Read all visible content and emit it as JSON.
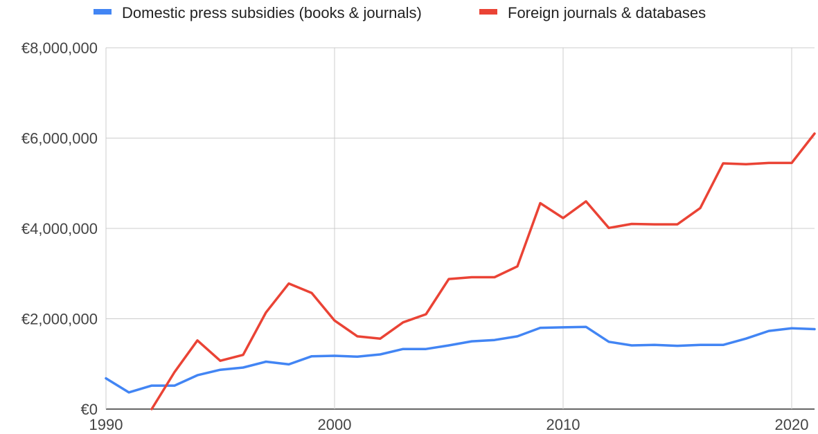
{
  "chart_data": {
    "type": "line",
    "title": "",
    "xlabel": "",
    "ylabel": "",
    "xlim": [
      1990,
      2021
    ],
    "ylim": [
      0,
      8000000
    ],
    "x_ticks": [
      {
        "value": 1990,
        "label": "1990"
      },
      {
        "value": 2000,
        "label": "2000"
      },
      {
        "value": 2010,
        "label": "2010"
      },
      {
        "value": 2020,
        "label": "2020"
      }
    ],
    "y_ticks": [
      {
        "value": 0,
        "label": "€0"
      },
      {
        "value": 2000000,
        "label": "€2,000,000"
      },
      {
        "value": 4000000,
        "label": "€4,000,000"
      },
      {
        "value": 6000000,
        "label": "€6,000,000"
      },
      {
        "value": 8000000,
        "label": "€8,000,000"
      }
    ],
    "grid": true,
    "legend_position": "top",
    "x": [
      1990,
      1991,
      1992,
      1993,
      1994,
      1995,
      1996,
      1997,
      1998,
      1999,
      2000,
      2001,
      2002,
      2003,
      2004,
      2005,
      2006,
      2007,
      2008,
      2009,
      2010,
      2011,
      2012,
      2013,
      2014,
      2015,
      2016,
      2017,
      2018,
      2019,
      2020,
      2021
    ],
    "series": [
      {
        "name": "Domestic press subsidies (books & journals)",
        "color": "#4285f4",
        "values": [
          680000,
          370000,
          520000,
          520000,
          750000,
          870000,
          920000,
          1050000,
          990000,
          1170000,
          1180000,
          1160000,
          1210000,
          1330000,
          1330000,
          1410000,
          1500000,
          1530000,
          1610000,
          1800000,
          1810000,
          1820000,
          1490000,
          1410000,
          1420000,
          1400000,
          1420000,
          1420000,
          1560000,
          1730000,
          1790000,
          1770000
        ]
      },
      {
        "name": "Foreign journals & databases",
        "color": "#ea4335",
        "values": [
          null,
          null,
          0,
          820000,
          1520000,
          1070000,
          1200000,
          2140000,
          2780000,
          2570000,
          1960000,
          1610000,
          1560000,
          1920000,
          2100000,
          2880000,
          2920000,
          2920000,
          3160000,
          4560000,
          4230000,
          4600000,
          4010000,
          4100000,
          4090000,
          4090000,
          4450000,
          5440000,
          5420000,
          5450000,
          5450000,
          6100000
        ]
      }
    ]
  }
}
